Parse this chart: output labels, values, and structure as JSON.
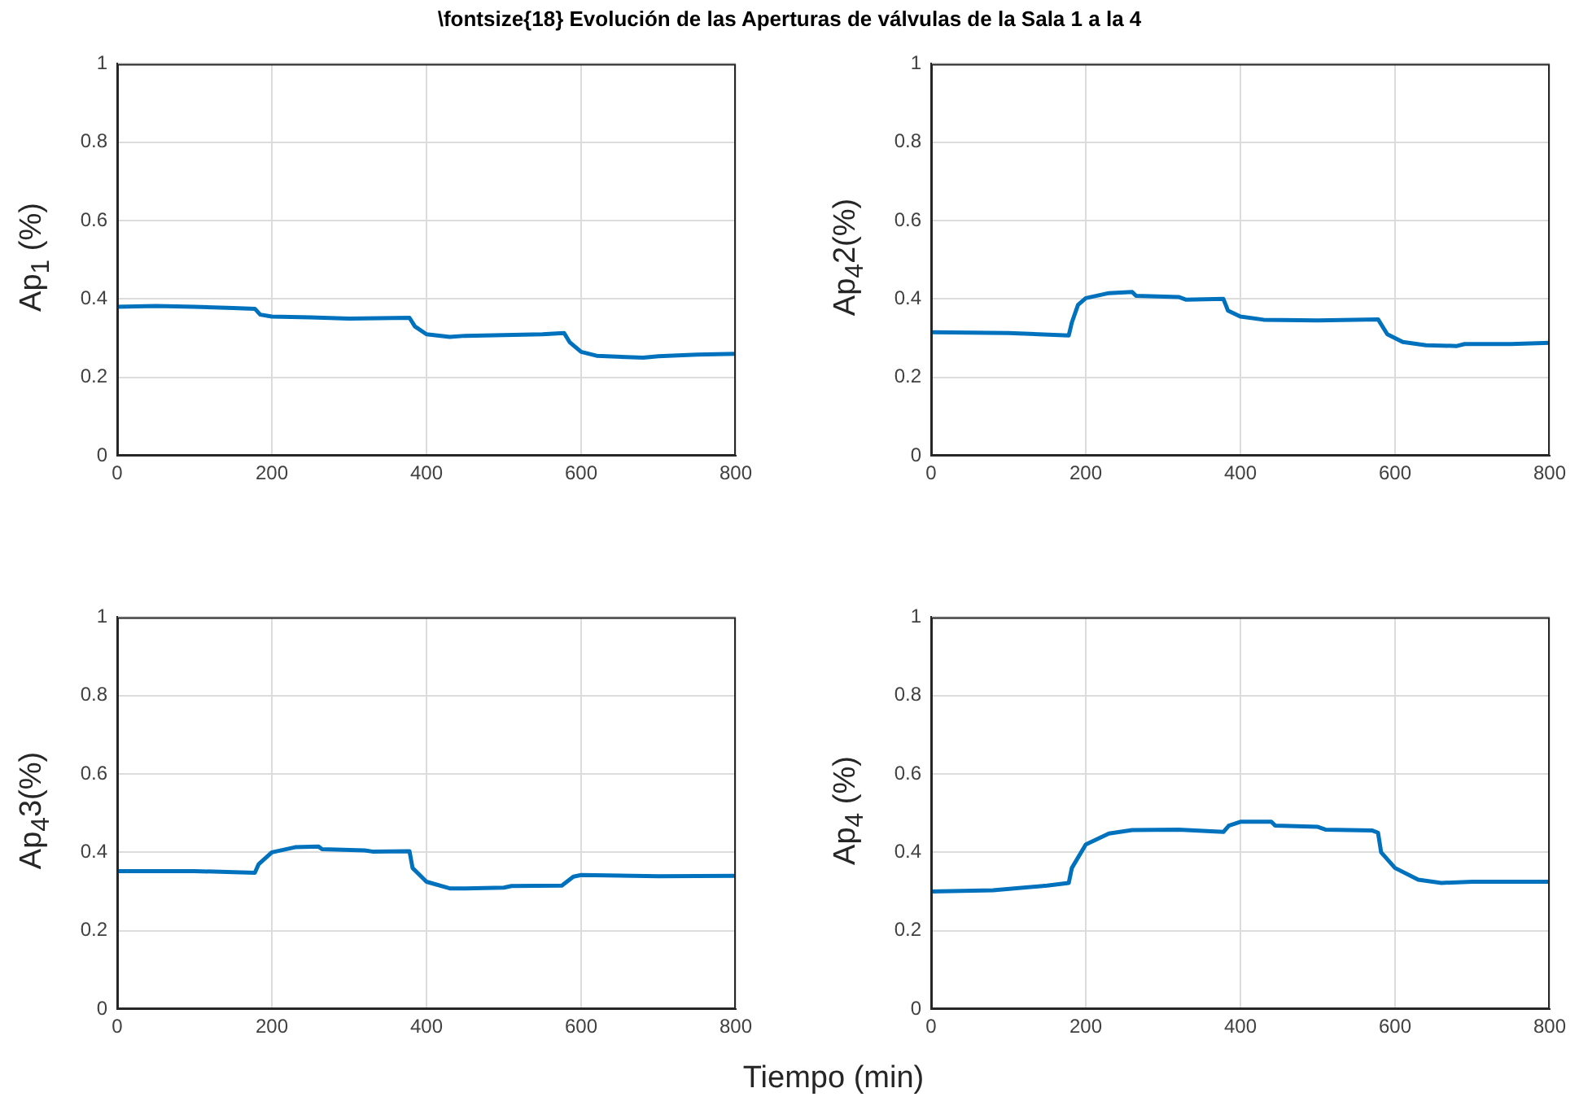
{
  "chart_data": [
    {
      "type": "line",
      "title": "\\fontsize{18} Evolución de las Aperturas de válvulas de la Sala 1 a la 4",
      "ylabel": "Ap$_{1}$ (%)",
      "color": "#0072bd",
      "grid": true,
      "xlim": [
        0,
        800
      ],
      "xticks": [
        0,
        200,
        400,
        600,
        800
      ],
      "ylim": [
        0,
        1
      ],
      "yticks": [
        0,
        0.2,
        0.4,
        0.6,
        0.8,
        1
      ],
      "x": [
        0,
        50,
        100,
        150,
        178,
        185,
        200,
        250,
        300,
        378,
        385,
        400,
        430,
        450,
        500,
        550,
        578,
        585,
        600,
        620,
        680,
        700,
        750,
        800
      ],
      "values": [
        0.38,
        0.382,
        0.38,
        0.377,
        0.375,
        0.36,
        0.355,
        0.353,
        0.35,
        0.352,
        0.33,
        0.31,
        0.303,
        0.306,
        0.308,
        0.31,
        0.313,
        0.29,
        0.265,
        0.255,
        0.25,
        0.254,
        0.258,
        0.26
      ]
    },
    {
      "type": "line",
      "ylabel": "Ap$_{4}$2(%)",
      "color": "#0072bd",
      "grid": true,
      "xlim": [
        0,
        800
      ],
      "xticks": [
        0,
        200,
        400,
        600,
        800
      ],
      "ylim": [
        0,
        1
      ],
      "yticks": [
        0,
        0.2,
        0.4,
        0.6,
        0.8,
        1
      ],
      "x": [
        0,
        100,
        178,
        182,
        190,
        200,
        230,
        260,
        265,
        320,
        330,
        378,
        384,
        400,
        430,
        500,
        578,
        590,
        610,
        640,
        680,
        690,
        750,
        800
      ],
      "values": [
        0.315,
        0.313,
        0.307,
        0.34,
        0.385,
        0.402,
        0.415,
        0.418,
        0.408,
        0.405,
        0.398,
        0.4,
        0.37,
        0.355,
        0.347,
        0.345,
        0.348,
        0.31,
        0.29,
        0.282,
        0.28,
        0.285,
        0.285,
        0.288
      ]
    },
    {
      "type": "line",
      "ylabel": "Ap$_{4}$3(%)",
      "xlabel": "Tiempo (min)",
      "color": "#0072bd",
      "grid": true,
      "xlim": [
        0,
        800
      ],
      "xticks": [
        0,
        200,
        400,
        600,
        800
      ],
      "ylim": [
        0,
        1
      ],
      "yticks": [
        0,
        0.2,
        0.4,
        0.6,
        0.8,
        1
      ],
      "x": [
        0,
        100,
        178,
        183,
        200,
        230,
        260,
        265,
        320,
        330,
        378,
        382,
        400,
        430,
        450,
        500,
        510,
        575,
        590,
        600,
        700,
        800
      ],
      "values": [
        0.352,
        0.352,
        0.348,
        0.37,
        0.4,
        0.413,
        0.415,
        0.408,
        0.405,
        0.402,
        0.403,
        0.36,
        0.325,
        0.308,
        0.308,
        0.31,
        0.314,
        0.315,
        0.338,
        0.342,
        0.339,
        0.34
      ]
    },
    {
      "type": "line",
      "ylabel": "Ap$_{4}$ (%)",
      "color": "#0072bd",
      "grid": true,
      "xlim": [
        0,
        800
      ],
      "xticks": [
        0,
        200,
        400,
        600,
        800
      ],
      "ylim": [
        0,
        1
      ],
      "yticks": [
        0,
        0.2,
        0.4,
        0.6,
        0.8,
        1
      ],
      "x": [
        0,
        80,
        150,
        178,
        182,
        200,
        230,
        260,
        320,
        378,
        385,
        400,
        440,
        445,
        500,
        510,
        570,
        578,
        582,
        600,
        630,
        660,
        700,
        800
      ],
      "values": [
        0.3,
        0.303,
        0.315,
        0.322,
        0.36,
        0.42,
        0.448,
        0.457,
        0.458,
        0.452,
        0.468,
        0.478,
        0.478,
        0.468,
        0.465,
        0.458,
        0.456,
        0.45,
        0.4,
        0.36,
        0.33,
        0.322,
        0.325,
        0.325
      ]
    }
  ]
}
